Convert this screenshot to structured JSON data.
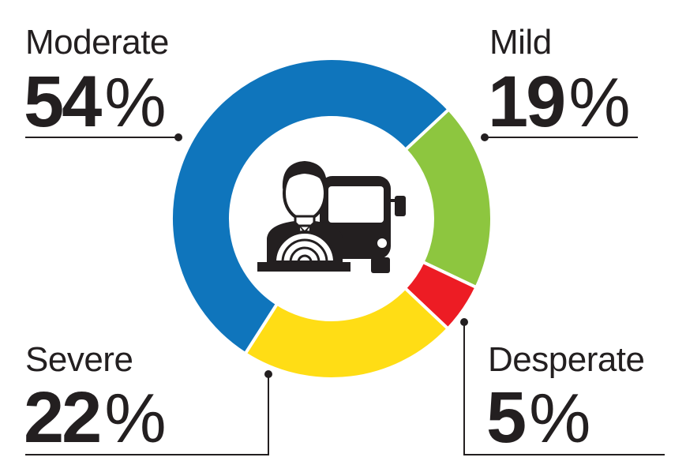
{
  "chart_data": {
    "type": "pie",
    "variant": "donut",
    "title": "",
    "slices": [
      {
        "label": "Mild",
        "value": 19,
        "display": "19",
        "unit": "%",
        "color": "#8dc63f"
      },
      {
        "label": "Desperate",
        "value": 5,
        "display": "5",
        "unit": "%",
        "color": "#ed1c24"
      },
      {
        "label": "Severe",
        "value": 22,
        "display": "22",
        "unit": "%",
        "color": "#ffdd15"
      },
      {
        "label": "Moderate",
        "value": 54,
        "display": "54",
        "unit": "%",
        "color": "#0f75bc"
      }
    ],
    "center_icon": "bus-driver-icon",
    "line_color": "#231f20"
  }
}
